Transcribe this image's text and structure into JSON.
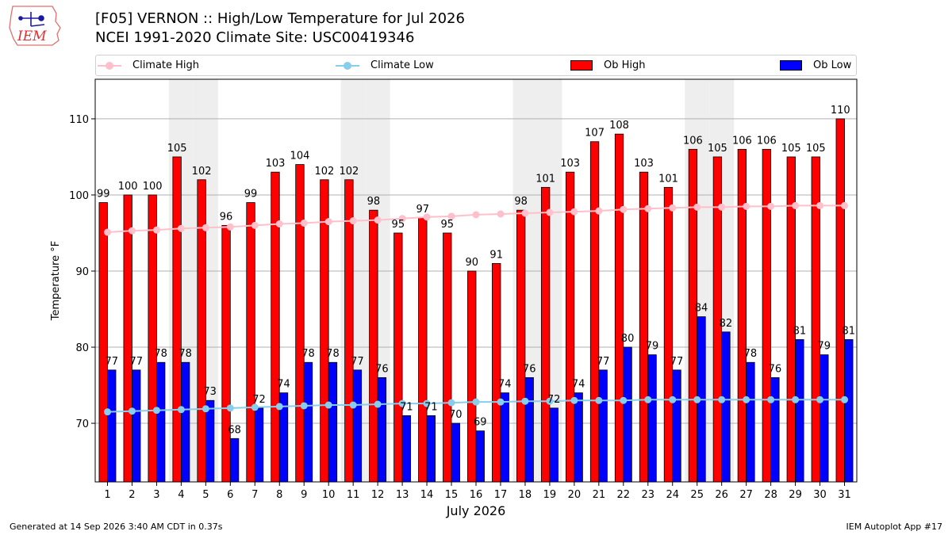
{
  "header": {
    "logo_text": "IEM",
    "title_line1": "[F05] VERNON :: High/Low Temperature for Jul 2026",
    "title_line2": "NCEI 1991-2020 Climate Site: USC00419346"
  },
  "legend": {
    "items": [
      "Climate High",
      "Climate Low",
      "Ob High",
      "Ob Low"
    ]
  },
  "footer": {
    "left": "Generated at 14 Sep 2026 3:40 AM CDT in 0.37s",
    "right": "IEM Autoplot App #17"
  },
  "colors": {
    "ob_high": "#ff0000",
    "ob_low": "#0000ff",
    "climate_high": "#ffc0cb",
    "climate_low": "#87ceeb",
    "weekend_shade": "#eeeeee"
  },
  "chart_data": {
    "type": "bar",
    "xlabel": "July 2026",
    "ylabel": "Temperature °F",
    "ylim": [
      62.3,
      115.2
    ],
    "yticks": [
      70,
      80,
      90,
      100,
      110
    ],
    "grid": "horizontal",
    "legend_position": "top",
    "categories": [
      1,
      2,
      3,
      4,
      5,
      6,
      7,
      8,
      9,
      10,
      11,
      12,
      13,
      14,
      15,
      16,
      17,
      18,
      19,
      20,
      21,
      22,
      23,
      24,
      25,
      26,
      27,
      28,
      29,
      30,
      31
    ],
    "shaded_days": [
      4,
      5,
      11,
      12,
      18,
      19,
      25,
      26
    ],
    "series": [
      {
        "name": "Ob High",
        "kind": "bar",
        "color": "#ff0000",
        "values": [
          99,
          100,
          100,
          105,
          102,
          96,
          99,
          103,
          104,
          102,
          102,
          98,
          95,
          97,
          95,
          90,
          91,
          98,
          101,
          103,
          107,
          108,
          103,
          101,
          106,
          105,
          106,
          106,
          105,
          105,
          110
        ],
        "labels": [
          "99",
          "100",
          "100",
          "105",
          "102",
          "96",
          "99",
          "103",
          "104",
          "102",
          "102",
          "98",
          "95",
          "97",
          "95",
          "90",
          "91",
          "98",
          "101",
          "103",
          "107",
          "108",
          "103",
          "101",
          "106",
          "105",
          "106",
          "106",
          "105",
          "105",
          "110"
        ]
      },
      {
        "name": "Ob Low",
        "kind": "bar",
        "color": "#0000ff",
        "values": [
          77,
          77,
          78,
          78,
          73,
          68,
          72,
          74,
          78,
          78,
          77,
          76,
          71,
          71,
          70,
          69,
          74,
          76,
          72,
          74,
          77,
          80,
          79,
          77,
          84,
          82,
          78,
          76,
          81,
          79,
          81
        ],
        "labels": [
          "77",
          "77",
          "78",
          "78",
          "73",
          "68",
          "72",
          "74",
          "78",
          "78",
          "77",
          "76",
          "71",
          "71",
          "70",
          "69",
          "74",
          "76",
          "72",
          "74",
          "77",
          "80",
          "79",
          "77",
          "84",
          "82",
          "78",
          "76",
          "81",
          "79",
          "81"
        ]
      },
      {
        "name": "Climate High",
        "kind": "line",
        "color": "#ffc0cb",
        "values": [
          95.1,
          95.3,
          95.4,
          95.6,
          95.7,
          95.8,
          96.0,
          96.2,
          96.3,
          96.5,
          96.6,
          96.7,
          96.9,
          97.1,
          97.2,
          97.4,
          97.5,
          97.6,
          97.7,
          97.8,
          97.9,
          98.1,
          98.2,
          98.3,
          98.4,
          98.4,
          98.5,
          98.5,
          98.6,
          98.6,
          98.6
        ]
      },
      {
        "name": "Climate Low",
        "kind": "line",
        "color": "#87ceeb",
        "values": [
          71.5,
          71.6,
          71.7,
          71.8,
          71.9,
          72.0,
          72.1,
          72.2,
          72.3,
          72.4,
          72.4,
          72.5,
          72.6,
          72.6,
          72.7,
          72.8,
          72.8,
          72.9,
          72.9,
          73.0,
          73.0,
          73.0,
          73.1,
          73.1,
          73.1,
          73.1,
          73.1,
          73.1,
          73.1,
          73.1,
          73.1
        ]
      }
    ]
  }
}
